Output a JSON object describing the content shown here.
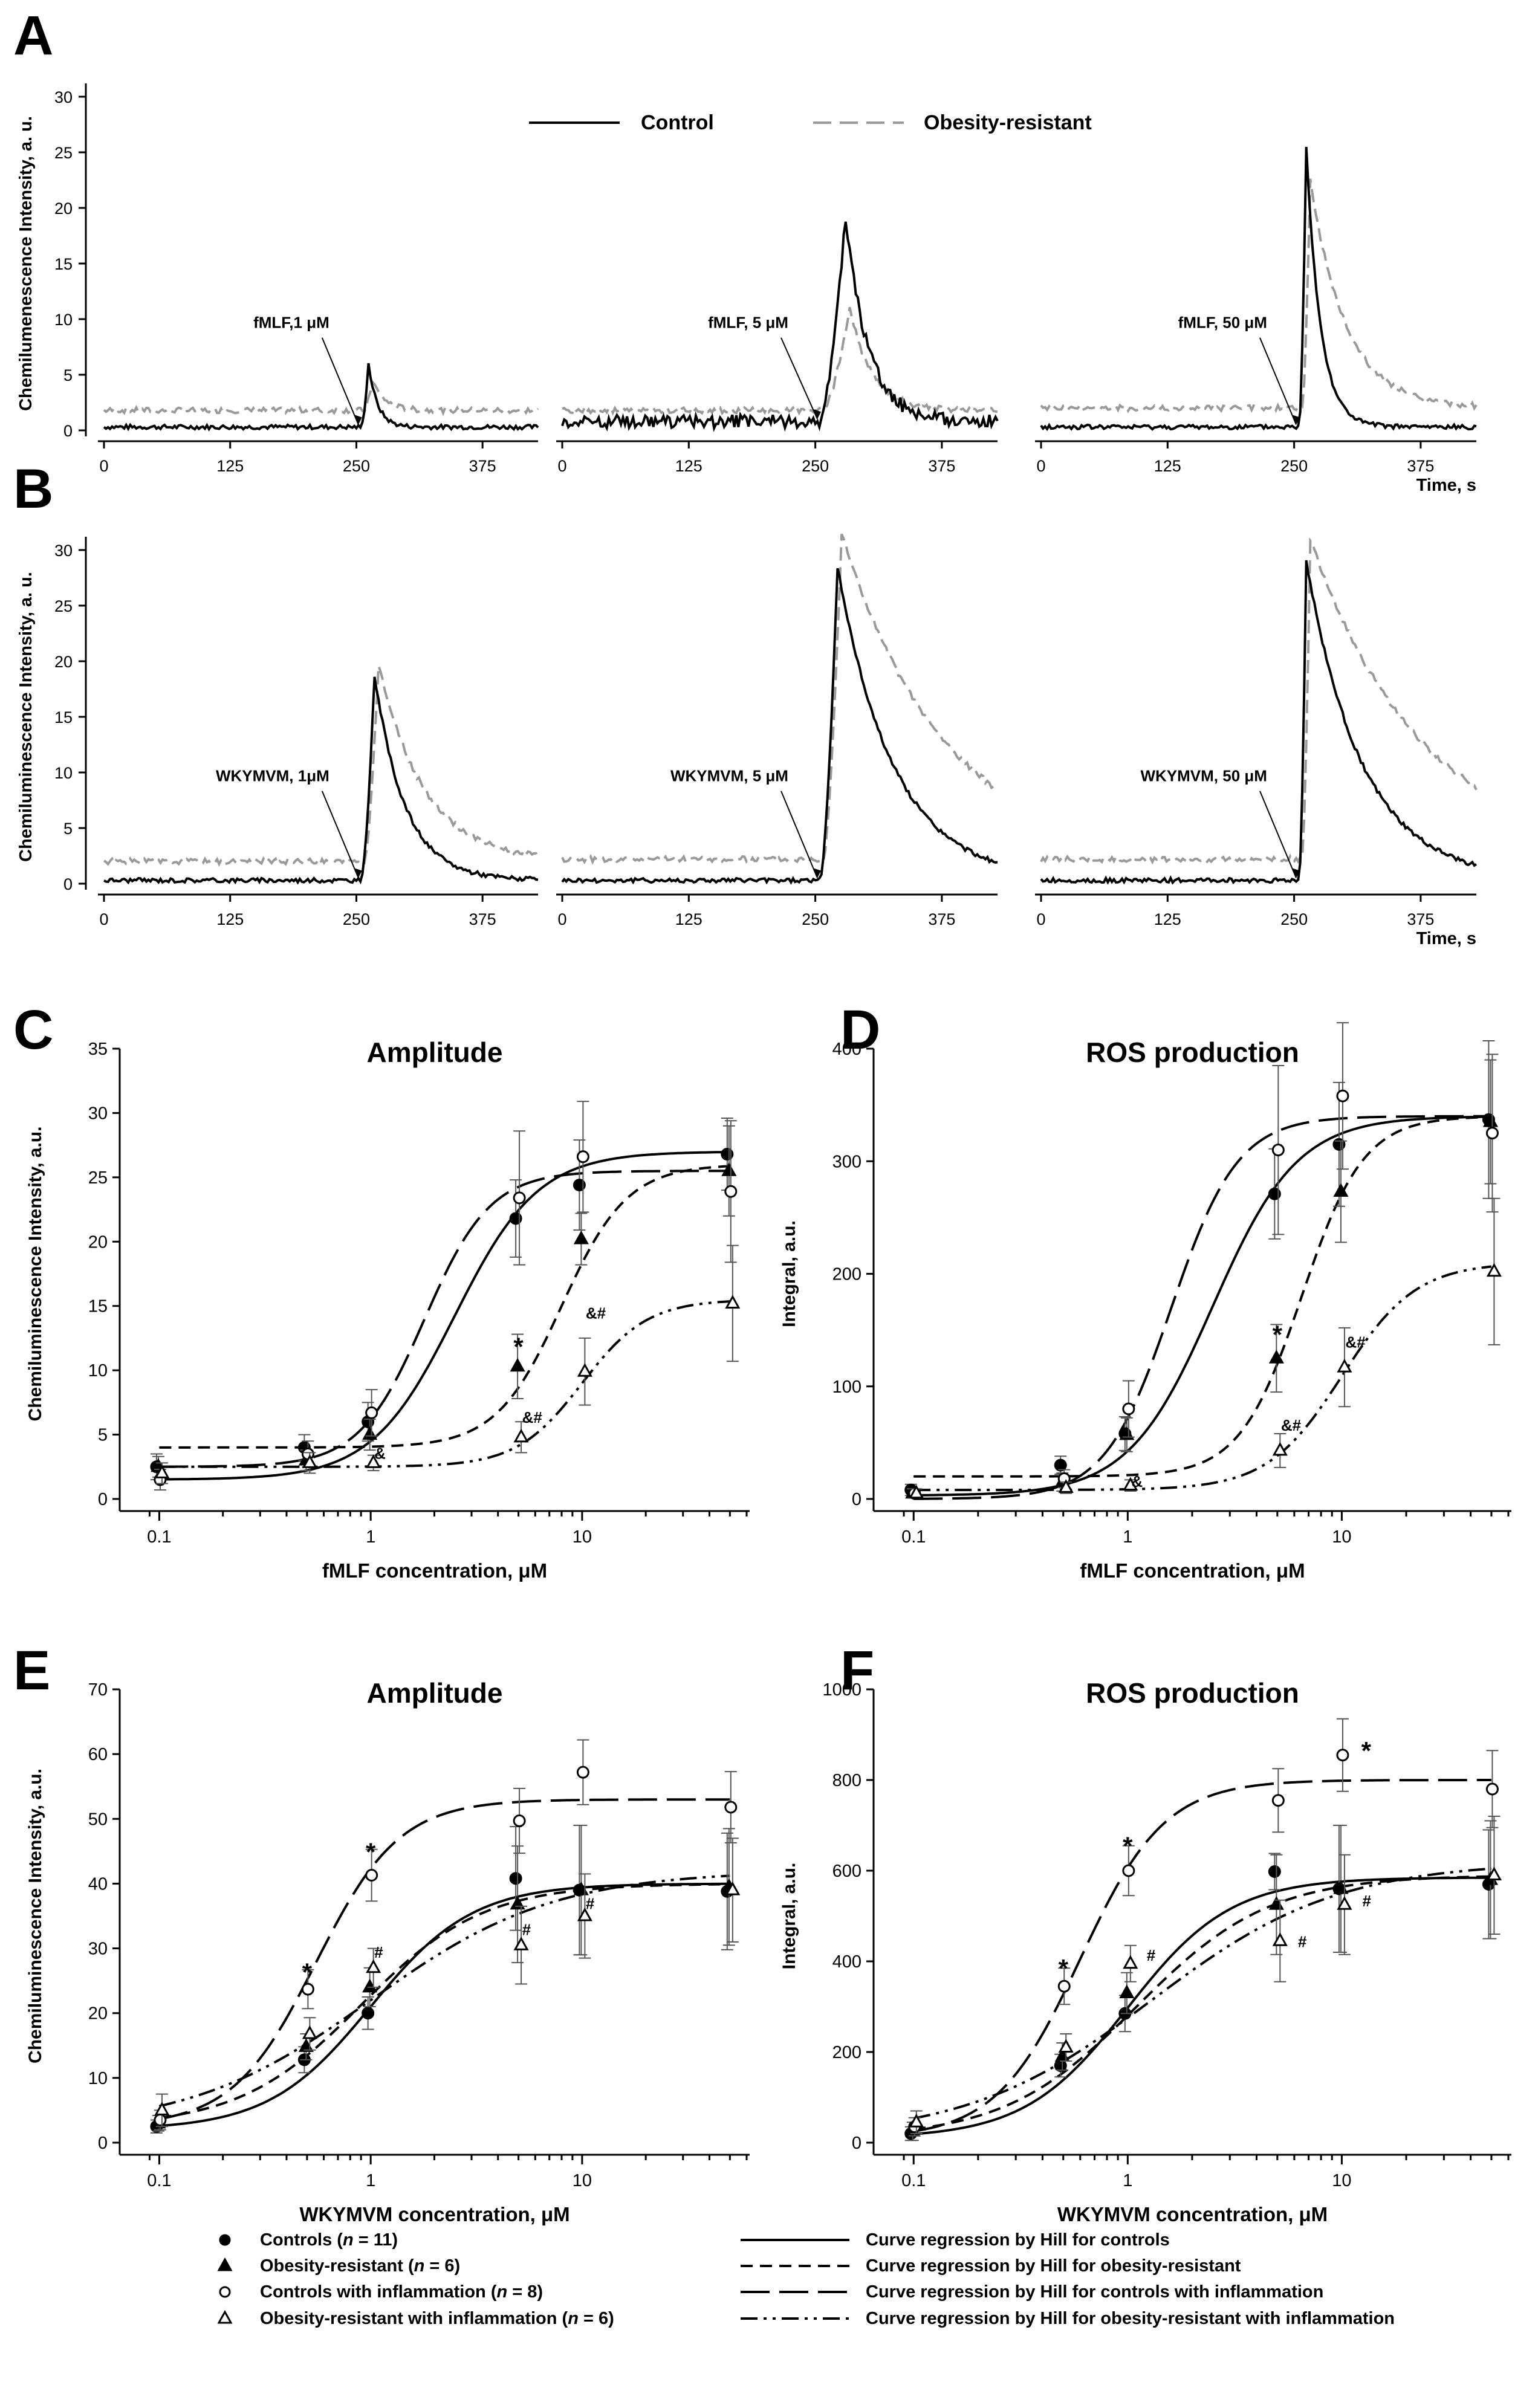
{
  "figure": {
    "panel_letters": [
      "A",
      "B",
      "C",
      "D",
      "E",
      "F"
    ],
    "traces_legend": {
      "control": "Control",
      "obesity_resistant": "Obesity-resistant"
    },
    "bottom_legend": {
      "markers": [
        "Controls (",
        "n",
        " = 11)",
        "Obesity-resistant (",
        "n",
        " = 6)",
        "Controls with inflammation (",
        "n",
        " = 8)",
        "Obesity-resistant with inflammation (",
        "n",
        " = 6)"
      ],
      "curves": [
        "Curve regression by Hill for controls",
        "Curve regression by Hill for obesity-resistant",
        "Curve regression by Hill for controls with inflammation",
        "Curve regression by Hill for obesity-resistant with inflammation"
      ]
    }
  },
  "chart_data": [
    {
      "id": "A",
      "type": "line",
      "ylabel": "Chemilumenescence Intensity, a. u.",
      "xlabel": "Time, s",
      "ylim": [
        0,
        30
      ],
      "yticks": [
        "0",
        "5",
        "10",
        "15",
        "20",
        "25",
        "30"
      ],
      "xlim": [
        0,
        430
      ],
      "xticks": [
        "0",
        "125",
        "250",
        "375"
      ],
      "subpanels": [
        {
          "annotation": "fMLF,1 μM",
          "onset": 255,
          "peak_time": 262,
          "control_peak": 6.0,
          "control_base": 0.3,
          "or_peak": 4.5,
          "or_base": 1.8,
          "control_decay": 9,
          "or_decay": 12,
          "noise": 0.2
        },
        {
          "annotation": "fMLF, 5 μM",
          "onset": 255,
          "peak_time": 280,
          "control_peak": 19.3,
          "control_base": 0.8,
          "or_peak": 11.0,
          "or_base": 1.8,
          "control_decay": 22,
          "or_decay": 22,
          "noise": 0.6
        },
        {
          "annotation": "fMLF, 50 μM",
          "onset": 255,
          "peak_time": 262,
          "control_peak": 25.6,
          "control_base": 0.3,
          "or_peak": 22.5,
          "or_base": 2.0,
          "control_decay": 14,
          "or_decay": 35,
          "noise": 0.2
        }
      ]
    },
    {
      "id": "B",
      "type": "line",
      "ylabel": "Chemiluminescence Intensity, a. u.",
      "xlabel": "Time, s",
      "ylim": [
        0,
        30
      ],
      "yticks": [
        "0",
        "5",
        "10",
        "15",
        "20",
        "25",
        "30"
      ],
      "xlim": [
        0,
        430
      ],
      "xticks": [
        "0",
        "125",
        "250",
        "375"
      ],
      "subpanels": [
        {
          "annotation": "WKYMVM, 1μM",
          "onset": 255,
          "peak_time": 268,
          "control_peak": 18.8,
          "control_base": 0.3,
          "or_peak": 19.8,
          "or_base": 2.0,
          "control_decay": 30,
          "or_decay": 45,
          "noise": 0.2
        },
        {
          "annotation": "WKYMVM, 5 μM",
          "onset": 255,
          "peak_time": 272,
          "control_peak": 28.5,
          "control_base": 0.3,
          "or_peak": 31.5,
          "or_base": 2.2,
          "control_decay": 55,
          "or_decay": 100,
          "noise": 0.2
        },
        {
          "annotation": "WKYMVM, 50 μM",
          "onset": 255,
          "peak_time": 262,
          "control_peak": 29.0,
          "control_base": 0.3,
          "or_peak": 31.0,
          "or_base": 2.2,
          "control_decay": 55,
          "or_decay": 110,
          "noise": 0.2
        }
      ]
    },
    {
      "id": "C",
      "type": "scatter",
      "title": "Amplitude",
      "ylabel": "Chemiluminescence Intensity, a.u.",
      "xlabel": "fMLF concentration, μM",
      "ylim": [
        0,
        35
      ],
      "yticks": [
        "0",
        "5",
        "10",
        "15",
        "20",
        "25",
        "30",
        "35"
      ],
      "xticks": [
        "0.1",
        "1",
        "10"
      ],
      "x": [
        0.1,
        0.5,
        1,
        5,
        10,
        50
      ],
      "series": [
        {
          "name": "Controls",
          "values": [
            2.5,
            4.0,
            6.0,
            21.8,
            24.4,
            26.8
          ],
          "err": [
            1.0,
            1.0,
            1.5,
            3.0,
            3.5,
            2.8
          ],
          "hill": [
            1.5,
            27.0,
            2.5,
            2.2
          ]
        },
        {
          "name": "Obesity-resistant",
          "values": [
            2.5,
            3.0,
            5.0,
            10.3,
            20.2,
            25.5
          ],
          "err": [
            0.8,
            0.8,
            1.2,
            2.5,
            2.0,
            3.5
          ],
          "hill": [
            4.0,
            26.0,
            8.0,
            2.8
          ]
        },
        {
          "name": "Controls with inflammation",
          "values": [
            1.5,
            3.5,
            6.7,
            23.4,
            26.6,
            23.9
          ],
          "err": [
            0.8,
            1.0,
            1.8,
            5.2,
            4.3,
            5.5
          ],
          "hill": [
            2.5,
            25.5,
            1.8,
            2.8
          ]
        },
        {
          "name": "Obesity-resistant with inflammation",
          "values": [
            2.0,
            2.8,
            2.8,
            4.8,
            9.9,
            15.2
          ],
          "err": [
            0.8,
            0.8,
            0.6,
            1.2,
            2.6,
            4.5
          ],
          "hill": [
            2.5,
            15.5,
            10.0,
            2.8
          ]
        }
      ],
      "annotations": [
        {
          "x": 5,
          "y": 12.2,
          "text": "*"
        },
        {
          "x": 10,
          "y": 14.5,
          "text": "&#"
        },
        {
          "x": 5,
          "y": 6.4,
          "text": "&#"
        },
        {
          "x": 1,
          "y": 3.6,
          "text": "&"
        }
      ]
    },
    {
      "id": "D",
      "type": "scatter",
      "title": "ROS production",
      "ylabel": "Integral, a.u.",
      "xlabel": "fMLF concentration, μM",
      "ylim": [
        0,
        400
      ],
      "yticks": [
        "0",
        "100",
        "200",
        "300",
        "400"
      ],
      "xticks": [
        "0.1",
        "1",
        "10"
      ],
      "x": [
        0.1,
        0.5,
        1,
        5,
        10,
        50
      ],
      "series": [
        {
          "name": "Controls",
          "values": [
            8,
            30,
            58,
            271,
            315,
            337
          ],
          "err": [
            5,
            8,
            15,
            40,
            55,
            70
          ],
          "hill": [
            3,
            340,
            2.5,
            2.2
          ]
        },
        {
          "name": "Obesity-resistant",
          "values": [
            5,
            15,
            57,
            125,
            273,
            335
          ],
          "err": [
            4,
            8,
            15,
            30,
            45,
            55
          ],
          "hill": [
            20,
            340,
            6.5,
            3.0
          ]
        },
        {
          "name": "Controls with inflammation",
          "values": [
            5,
            18,
            80,
            310,
            358,
            325
          ],
          "err": [
            4,
            8,
            25,
            75,
            65,
            70
          ],
          "hill": [
            0,
            340,
            1.6,
            2.8
          ]
        },
        {
          "name": "Obesity-resistant with inflammation",
          "values": [
            5,
            10,
            12,
            43,
            117,
            202
          ],
          "err": [
            4,
            5,
            5,
            15,
            35,
            65
          ],
          "hill": [
            8,
            210,
            10.0,
            2.5
          ]
        }
      ],
      "annotations": [
        {
          "x": 5,
          "y": 150,
          "text": "*"
        },
        {
          "x": 10,
          "y": 140,
          "text": "&#"
        },
        {
          "x": 5,
          "y": 66,
          "text": "&#"
        },
        {
          "x": 1,
          "y": 16,
          "text": "&"
        }
      ]
    },
    {
      "id": "E",
      "type": "scatter",
      "title": "Amplitude",
      "ylabel": "Chemiluminescence Intensity, a.u.",
      "xlabel": "WKYMVM concentration, μM",
      "ylim": [
        0,
        70
      ],
      "yticks": [
        "0",
        "10",
        "20",
        "30",
        "40",
        "50",
        "60",
        "70"
      ],
      "xticks": [
        "0.1",
        "1",
        "10"
      ],
      "x": [
        0.1,
        0.5,
        1,
        5,
        10,
        50
      ],
      "series": [
        {
          "name": "Controls",
          "values": [
            2.5,
            12.8,
            20.0,
            40.8,
            39.0,
            38.8
          ],
          "err": [
            1.0,
            2.0,
            2.5,
            8.0,
            10.0,
            9.0
          ],
          "hill": [
            2.0,
            40.0,
            1.0,
            1.8
          ]
        },
        {
          "name": "Obesity-resistant",
          "values": [
            3.0,
            14.8,
            24.0,
            36.8,
            39.0,
            39.5
          ],
          "err": [
            1.2,
            2.0,
            3.0,
            9.0,
            10.0,
            9.0
          ],
          "hill": [
            2.5,
            40.0,
            0.9,
            1.5
          ]
        },
        {
          "name": "Controls with inflammation",
          "values": [
            3.5,
            23.7,
            41.3,
            49.7,
            57.2,
            51.8
          ],
          "err": [
            1.5,
            3.0,
            4.0,
            5.0,
            5.0,
            5.5
          ],
          "hill": [
            2.5,
            53.0,
            0.55,
            2.2
          ]
        },
        {
          "name": "Obesity-resistant with inflammation",
          "values": [
            5.0,
            16.8,
            27.0,
            30.5,
            35.0,
            39.0
          ],
          "err": [
            2.5,
            2.5,
            3.0,
            6.0,
            6.5,
            8.0
          ],
          "hill": [
            2.0,
            42.0,
            1.0,
            1.0
          ]
        }
      ],
      "annotations": [
        {
          "x": 0.5,
          "y": 27.0,
          "text": "*"
        },
        {
          "x": 1,
          "y": 45.6,
          "text": "*"
        },
        {
          "x": 1,
          "y": 29.5,
          "text": "#"
        },
        {
          "x": 5,
          "y": 33.0,
          "text": "#"
        },
        {
          "x": 10,
          "y": 37.0,
          "text": "#"
        }
      ]
    },
    {
      "id": "F",
      "type": "scatter",
      "title": "ROS production",
      "ylabel": "Integral, a.u.",
      "xlabel": "WKYMVM concentration, μM",
      "ylim": [
        0,
        1000
      ],
      "yticks": [
        "0",
        "200",
        "400",
        "600",
        "800",
        "1000"
      ],
      "xticks": [
        "0.1",
        "1",
        "10"
      ],
      "x": [
        0.1,
        0.5,
        1,
        5,
        10,
        50
      ],
      "series": [
        {
          "name": "Controls",
          "values": [
            20,
            170,
            285,
            598,
            560,
            570
          ],
          "err": [
            15,
            25,
            40,
            40,
            140,
            120
          ],
          "hill": [
            10,
            585,
            1.0,
            1.8
          ]
        },
        {
          "name": "Obesity-resistant",
          "values": [
            25,
            190,
            330,
            525,
            560,
            580
          ],
          "err": [
            20,
            30,
            45,
            110,
            140,
            130
          ],
          "hill": [
            10,
            590,
            1.1,
            1.4
          ]
        },
        {
          "name": "Controls with inflammation",
          "values": [
            35,
            345,
            600,
            755,
            855,
            780
          ],
          "err": [
            20,
            40,
            55,
            70,
            80,
            85
          ],
          "hill": [
            10,
            800,
            0.6,
            2.2
          ]
        },
        {
          "name": "Obesity-resistant with inflammation",
          "values": [
            45,
            210,
            395,
            445,
            525,
            590
          ],
          "err": [
            25,
            30,
            40,
            90,
            110,
            130
          ],
          "hill": [
            10,
            620,
            1.3,
            1.0
          ]
        }
      ],
      "annotations": [
        {
          "x": 0.5,
          "y": 395,
          "text": "*"
        },
        {
          "x": 1,
          "y": 665,
          "text": "*"
        },
        {
          "x": 1.18,
          "y": 415,
          "text": "#"
        },
        {
          "x": 13,
          "y": 875,
          "text": "*"
        },
        {
          "x": 6,
          "y": 445,
          "text": "#"
        },
        {
          "x": 12,
          "y": 535,
          "text": "#"
        }
      ]
    }
  ]
}
